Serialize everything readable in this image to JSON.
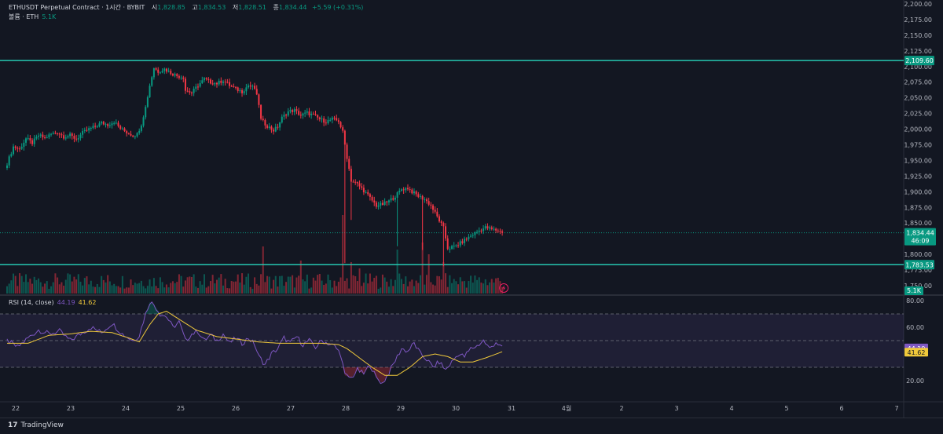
{
  "header": {
    "symbol": "ETHUSDT Perpetual Contract · 1시간 · BYBIT",
    "open_label": "시",
    "open": "1,828.85",
    "high_label": "고",
    "high": "1,834.53",
    "low_label": "저",
    "low": "1,828.51",
    "close_label": "종",
    "close": "1,834.44",
    "change": "+5.59 (+0.31%)"
  },
  "volume_legend": {
    "label": "볼륨 · ETH",
    "value": "5.1K"
  },
  "rsi_legend": {
    "label": "RSI (14, close)",
    "rsi": "44.19",
    "ma": "41.62"
  },
  "footer": {
    "brand": "TradingView",
    "logo": "17"
  },
  "colors": {
    "up": "#089981",
    "down": "#f23645",
    "rsi": "#7e57c2",
    "rsi_ma": "#f0c93b",
    "hline": "#26c6b0",
    "bg": "#131722"
  },
  "chart_data": [
    {
      "type": "candlestick",
      "title": "ETHUSDT Perpetual Contract · 1시간 · BYBIT",
      "x_ticks": [
        "22",
        "23",
        "24",
        "25",
        "26",
        "27",
        "28",
        "29",
        "30",
        "31",
        "4월",
        "2",
        "3",
        "4",
        "5",
        "6",
        "7"
      ],
      "y_ticks": [
        "2,200.00",
        "2,175.00",
        "2,150.00",
        "2,125.00",
        "2,100.00",
        "2,075.00",
        "2,050.00",
        "2,025.00",
        "2,000.00",
        "1,975.00",
        "1,950.00",
        "1,925.00",
        "1,900.00",
        "1,875.00",
        "1,850.00",
        "1,825.00",
        "1,800.00",
        "1,775.00",
        "1,750.00"
      ],
      "ylim": [
        1750,
        2200
      ],
      "horizontal_lines": [
        {
          "value": 2109.6,
          "label": "2,109.60"
        },
        {
          "value": 1783.53,
          "label": "1,783.53"
        }
      ],
      "last_price": {
        "value": 1834.44,
        "label": "1,834.44",
        "countdown": "46:09"
      },
      "close_path": [
        [
          0,
          1945
        ],
        [
          3,
          1972
        ],
        [
          6,
          1968
        ],
        [
          9,
          1985
        ],
        [
          12,
          1978
        ],
        [
          15,
          1990
        ],
        [
          18,
          1986
        ],
        [
          21,
          1992
        ],
        [
          24,
          1995
        ],
        [
          27,
          1988
        ],
        [
          30,
          1990
        ],
        [
          33,
          1984
        ],
        [
          36,
          1994
        ],
        [
          39,
          2000
        ],
        [
          42,
          2004
        ],
        [
          45,
          2010
        ],
        [
          48,
          2007
        ],
        [
          51,
          2012
        ],
        [
          54,
          2001
        ],
        [
          57,
          1995
        ],
        [
          60,
          1990
        ],
        [
          62,
          1992
        ],
        [
          64,
          2008
        ],
        [
          66,
          2035
        ],
        [
          68,
          2070
        ],
        [
          70,
          2098
        ],
        [
          72,
          2092
        ],
        [
          75,
          2096
        ],
        [
          78,
          2090
        ],
        [
          81,
          2085
        ],
        [
          84,
          2083
        ],
        [
          85,
          2062
        ],
        [
          88,
          2058
        ],
        [
          91,
          2070
        ],
        [
          94,
          2080
        ],
        [
          97,
          2075
        ],
        [
          100,
          2073
        ],
        [
          103,
          2078
        ],
        [
          106,
          2070
        ],
        [
          109,
          2064
        ],
        [
          112,
          2060
        ],
        [
          115,
          2070
        ],
        [
          118,
          2065
        ],
        [
          120,
          2040
        ],
        [
          121,
          2015
        ],
        [
          124,
          2005
        ],
        [
          127,
          1998
        ],
        [
          129,
          2004
        ],
        [
          131,
          2018
        ],
        [
          134,
          2028
        ],
        [
          137,
          2030
        ],
        [
          140,
          2022
        ],
        [
          143,
          2026
        ],
        [
          146,
          2022
        ],
        [
          149,
          2016
        ],
        [
          152,
          2012
        ],
        [
          155,
          2016
        ],
        [
          158,
          2013
        ],
        [
          160,
          1995
        ],
        [
          162,
          1955
        ],
        [
          164,
          1918
        ],
        [
          167,
          1912
        ],
        [
          170,
          1902
        ],
        [
          173,
          1890
        ],
        [
          176,
          1878
        ],
        [
          179,
          1880
        ],
        [
          182,
          1885
        ],
        [
          185,
          1893
        ],
        [
          188,
          1904
        ],
        [
          191,
          1906
        ],
        [
          193,
          1900
        ],
        [
          196,
          1893
        ],
        [
          199,
          1888
        ],
        [
          202,
          1878
        ],
        [
          205,
          1860
        ],
        [
          208,
          1842
        ],
        [
          210,
          1810
        ],
        [
          213,
          1812
        ],
        [
          216,
          1818
        ],
        [
          219,
          1825
        ],
        [
          222,
          1832
        ],
        [
          225,
          1838
        ],
        [
          228,
          1843
        ],
        [
          231,
          1840
        ],
        [
          234,
          1838
        ],
        [
          236,
          1834.44
        ]
      ],
      "spikes": [
        {
          "bar": 161,
          "low": 1786
        },
        {
          "bar": 164,
          "low": 1855
        },
        {
          "bar": 186,
          "low": 1813
        },
        {
          "bar": 198,
          "low": 1807
        },
        {
          "bar": 208,
          "low": 1781
        }
      ],
      "volume": {
        "last": "5.1K",
        "spikes": [
          [
            122,
            60
          ],
          [
            140,
            42
          ],
          [
            160,
            100
          ],
          [
            164,
            40
          ],
          [
            168,
            32
          ],
          [
            186,
            56
          ],
          [
            198,
            65
          ],
          [
            201,
            50
          ],
          [
            208,
            40
          ]
        ]
      }
    },
    {
      "type": "line",
      "title": "RSI (14, close)",
      "y_ticks": [
        "80.00",
        "60.00",
        "20.00"
      ],
      "ylim": [
        10,
        82
      ],
      "bands": {
        "upper": 70,
        "middle": 50,
        "lower": 30
      },
      "series": [
        {
          "name": "RSI",
          "path": [
            [
              0,
              50
            ],
            [
              5,
              45
            ],
            [
              10,
              52
            ],
            [
              15,
              58
            ],
            [
              20,
              55
            ],
            [
              25,
              57
            ],
            [
              30,
              50
            ],
            [
              35,
              55
            ],
            [
              40,
              60
            ],
            [
              45,
              56
            ],
            [
              50,
              63
            ],
            [
              55,
              55
            ],
            [
              60,
              50
            ],
            [
              63,
              54
            ],
            [
              66,
              70
            ],
            [
              68,
              79
            ],
            [
              70,
              77
            ],
            [
              73,
              70
            ],
            [
              76,
              68
            ],
            [
              79,
              60
            ],
            [
              82,
              64
            ],
            [
              85,
              50
            ],
            [
              88,
              55
            ],
            [
              91,
              57
            ],
            [
              94,
              50
            ],
            [
              97,
              54
            ],
            [
              100,
              50
            ],
            [
              103,
              55
            ],
            [
              106,
              48
            ],
            [
              109,
              52
            ],
            [
              112,
              48
            ],
            [
              115,
              52
            ],
            [
              118,
              47
            ],
            [
              120,
              38
            ],
            [
              123,
              32
            ],
            [
              126,
              40
            ],
            [
              129,
              44
            ],
            [
              132,
              52
            ],
            [
              135,
              48
            ],
            [
              138,
              53
            ],
            [
              141,
              47
            ],
            [
              144,
              50
            ],
            [
              147,
              45
            ],
            [
              150,
              50
            ],
            [
              153,
              48
            ],
            [
              156,
              46
            ],
            [
              159,
              40
            ],
            [
              161,
              24
            ],
            [
              164,
              22
            ],
            [
              167,
              28
            ],
            [
              170,
              25
            ],
            [
              173,
              32
            ],
            [
              176,
              22
            ],
            [
              179,
              18
            ],
            [
              182,
              26
            ],
            [
              185,
              35
            ],
            [
              188,
              44
            ],
            [
              191,
              42
            ],
            [
              194,
              48
            ],
            [
              197,
              40
            ],
            [
              200,
              36
            ],
            [
              203,
              30
            ],
            [
              206,
              34
            ],
            [
              209,
              28
            ],
            [
              212,
              34
            ],
            [
              215,
              40
            ],
            [
              218,
              38
            ],
            [
              221,
              44
            ],
            [
              224,
              46
            ],
            [
              227,
              50
            ],
            [
              230,
              44
            ],
            [
              233,
              49
            ],
            [
              236,
              44.19
            ]
          ]
        },
        {
          "name": "RSI MA",
          "path": [
            [
              0,
              48
            ],
            [
              10,
              48
            ],
            [
              20,
              54
            ],
            [
              30,
              55
            ],
            [
              40,
              57
            ],
            [
              50,
              56
            ],
            [
              58,
              52
            ],
            [
              63,
              49
            ],
            [
              68,
              62
            ],
            [
              72,
              70
            ],
            [
              76,
              72
            ],
            [
              82,
              66
            ],
            [
              90,
              58
            ],
            [
              100,
              53
            ],
            [
              110,
              51
            ],
            [
              120,
              49
            ],
            [
              130,
              48
            ],
            [
              140,
              48
            ],
            [
              150,
              48
            ],
            [
              158,
              47
            ],
            [
              162,
              44
            ],
            [
              168,
              37
            ],
            [
              174,
              30
            ],
            [
              180,
              24
            ],
            [
              186,
              24
            ],
            [
              192,
              30
            ],
            [
              198,
              38
            ],
            [
              204,
              40
            ],
            [
              210,
              38
            ],
            [
              216,
              34
            ],
            [
              222,
              34
            ],
            [
              228,
              37
            ],
            [
              236,
              41.62
            ]
          ]
        }
      ]
    }
  ]
}
